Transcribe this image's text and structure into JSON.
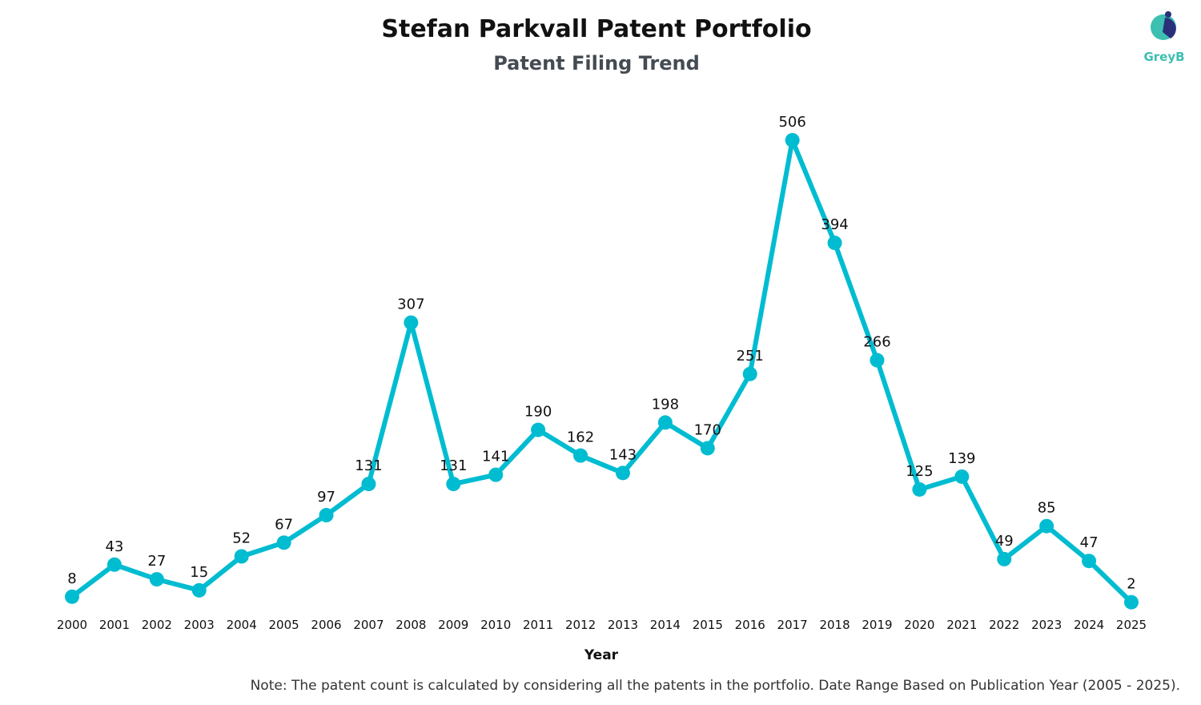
{
  "brand": {
    "name": "GreyB",
    "color": "#3dbfb1"
  },
  "chart_data": {
    "type": "line",
    "title": "Stefan Parkvall Patent Portfolio",
    "subtitle": "Patent Filing Trend",
    "xlabel": "Year",
    "ylabel": "",
    "x": [
      "2000",
      "2001",
      "2002",
      "2003",
      "2004",
      "2005",
      "2006",
      "2007",
      "2008",
      "2009",
      "2010",
      "2011",
      "2012",
      "2013",
      "2014",
      "2015",
      "2016",
      "2017",
      "2018",
      "2019",
      "2020",
      "2021",
      "2022",
      "2023",
      "2024",
      "2025"
    ],
    "series": [
      {
        "values": [
          8,
          43,
          27,
          15,
          52,
          67,
          97,
          131,
          307,
          131,
          141,
          190,
          162,
          143,
          198,
          170,
          251,
          506,
          394,
          266,
          125,
          139,
          49,
          85,
          47,
          2
        ]
      }
    ],
    "ylim": [
      0,
      506
    ],
    "data_labels": true,
    "grid": false,
    "legend": "none",
    "color": "#00bcd1",
    "note": "Note: The patent count is calculated by considering all the patents in the portfolio. Date Range Based on Publication Year (2005 - 2025)."
  }
}
